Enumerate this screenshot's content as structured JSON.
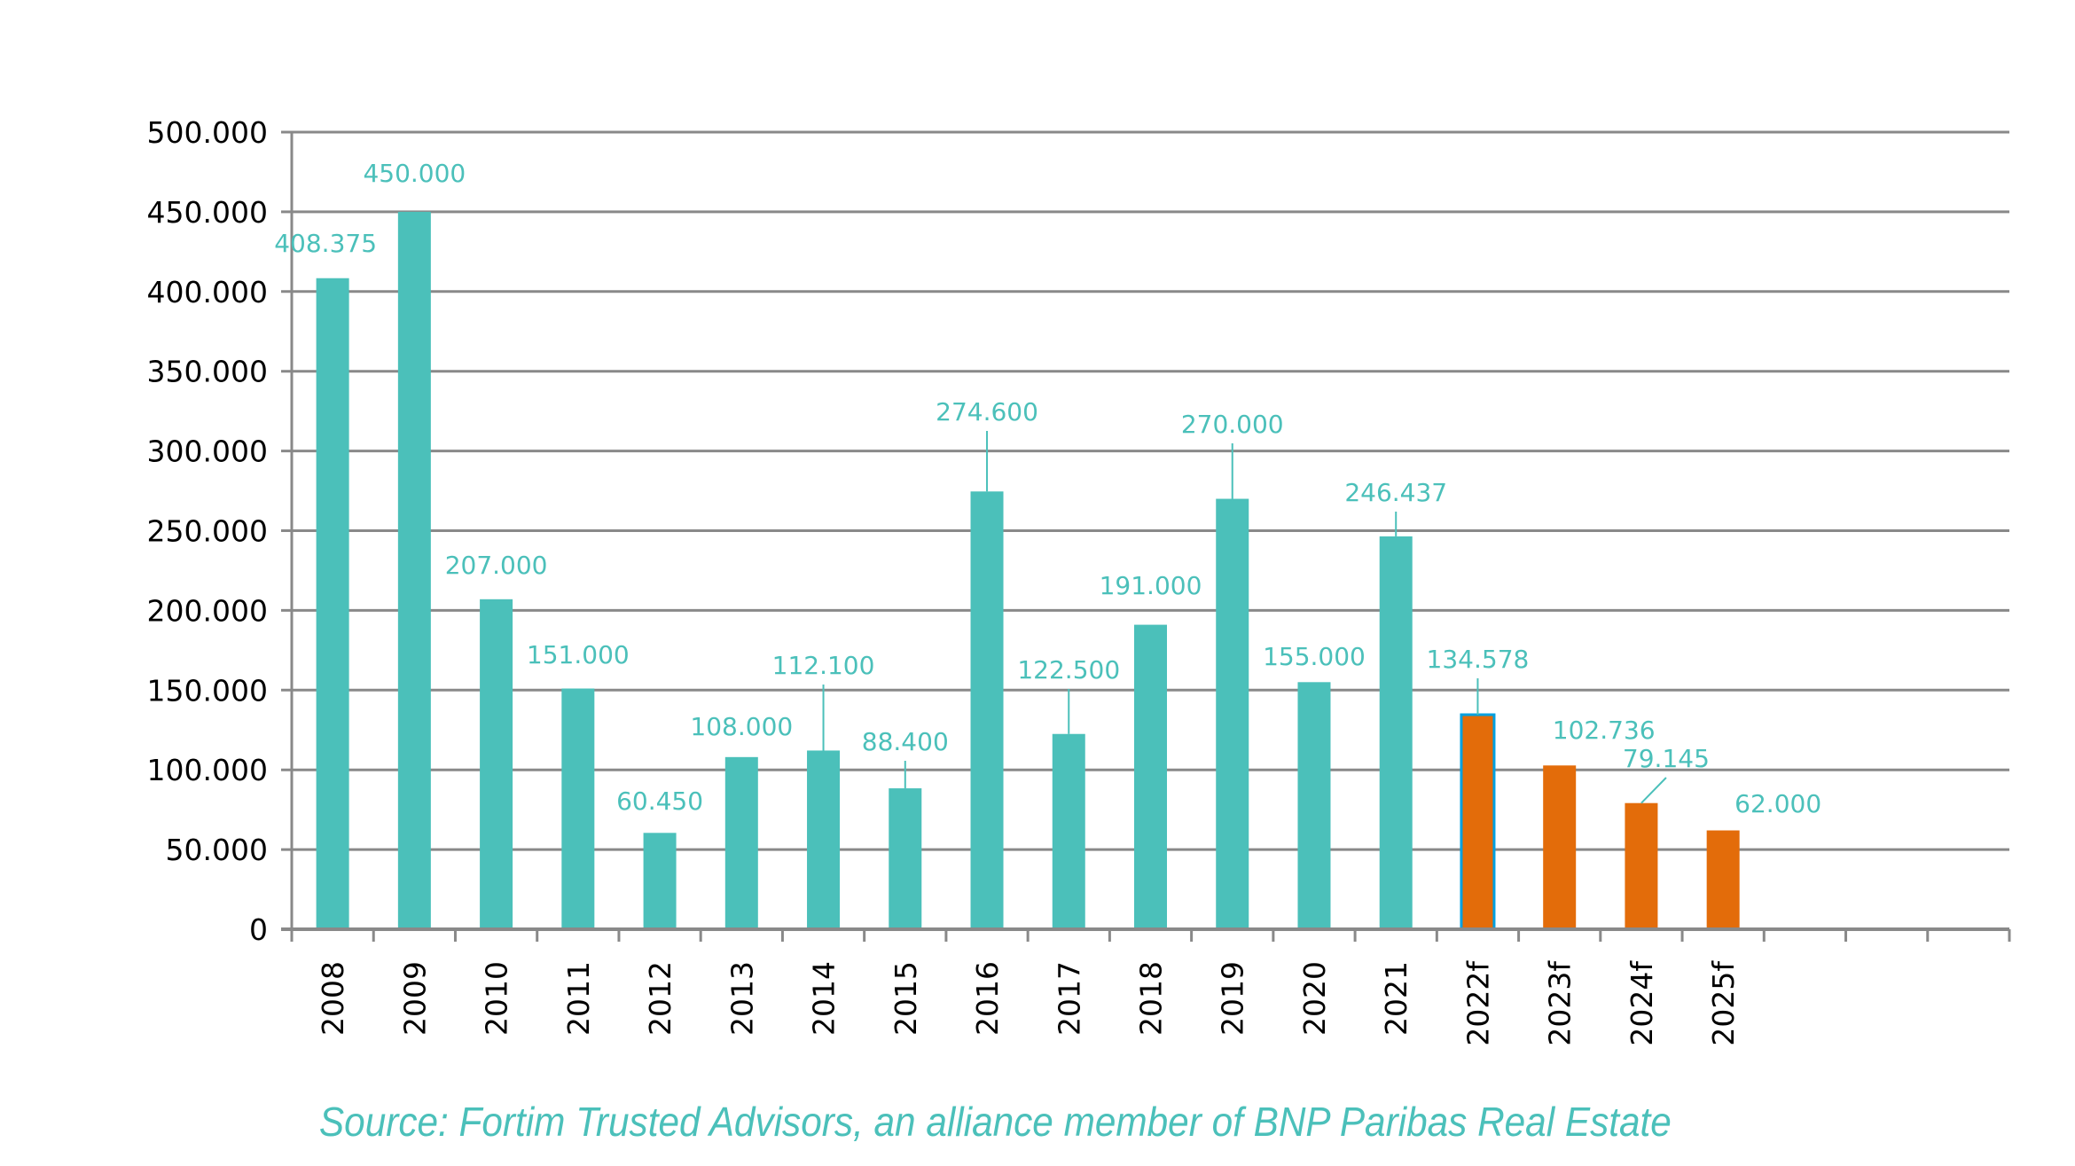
{
  "chart_data": {
    "type": "bar",
    "title": "",
    "xlabel": "",
    "ylabel": "",
    "categories": [
      "2008",
      "2009",
      "2010",
      "2011",
      "2012",
      "2013",
      "2014",
      "2015",
      "2016",
      "2017",
      "2018",
      "2019",
      "2020",
      "2021",
      "2022f",
      "2023f",
      "2024f",
      "2025f",
      "",
      "",
      ""
    ],
    "values": [
      408375,
      450000,
      207000,
      151000,
      60450,
      108000,
      112100,
      88400,
      274600,
      122500,
      191000,
      270000,
      155000,
      246437,
      134578,
      102736,
      79145,
      62000,
      null,
      null,
      null
    ],
    "data_labels": [
      "408.375",
      "450.000",
      "207.000",
      "151.000",
      "60.450",
      "108.000",
      "112.100",
      "88.400",
      "274.600",
      "122.500",
      "191.000",
      "270.000",
      "155.000",
      "246.437",
      "134.578",
      "102.736",
      "79.145",
      "62.000",
      "",
      "",
      ""
    ],
    "series_type": [
      "actual",
      "actual",
      "actual",
      "actual",
      "actual",
      "actual",
      "actual",
      "actual",
      "actual",
      "actual",
      "actual",
      "actual",
      "actual",
      "actual",
      "forecast",
      "forecast",
      "forecast",
      "forecast",
      "",
      "",
      ""
    ],
    "ylim": [
      0,
      500000
    ],
    "yticks": [
      0,
      50000,
      100000,
      150000,
      200000,
      250000,
      300000,
      350000,
      400000,
      450000,
      500000
    ],
    "ytick_labels": [
      "0",
      "50.000",
      "100.000",
      "150.000",
      "200.000",
      "250.000",
      "300.000",
      "350.000",
      "400.000",
      "450.000",
      "500.000"
    ],
    "grid": true,
    "legend": "none",
    "colors": {
      "actual": "#4BC0BA",
      "forecast": "#E36C0A",
      "label": "#4BC0BA",
      "grid": "#898989",
      "highlight_outline": "#00A0E0"
    }
  },
  "source": {
    "text": "Source: Fortim Trusted Advisors, an alliance member of BNP Paribas Real Estate",
    "color": "#4BC0BA"
  }
}
